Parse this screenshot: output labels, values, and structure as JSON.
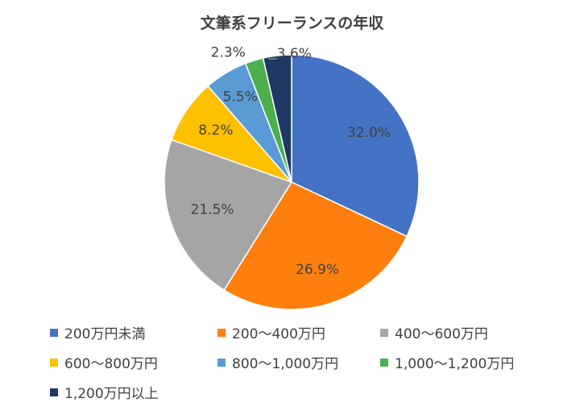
{
  "chart_data": {
    "type": "pie",
    "title": "文筆系フリーランスの年収",
    "categories": [
      "200万円未満",
      "200〜400万円",
      "400〜600万円",
      "600〜800万円",
      "800〜1,000万円",
      "1,000〜1,200万円",
      "1,200万円以上"
    ],
    "values": [
      32.0,
      26.9,
      21.5,
      8.2,
      5.5,
      2.3,
      3.6
    ],
    "labels": [
      "32.0%",
      "26.9%",
      "21.5%",
      "8.2%",
      "5.5%",
      "2.3%",
      "3.6%"
    ],
    "colors": [
      "#4472C4",
      "#FF7F0E",
      "#A5A5A5",
      "#FFC000",
      "#5B9BD5",
      "#4CAF50",
      "#203864"
    ],
    "legend_position": "bottom"
  }
}
